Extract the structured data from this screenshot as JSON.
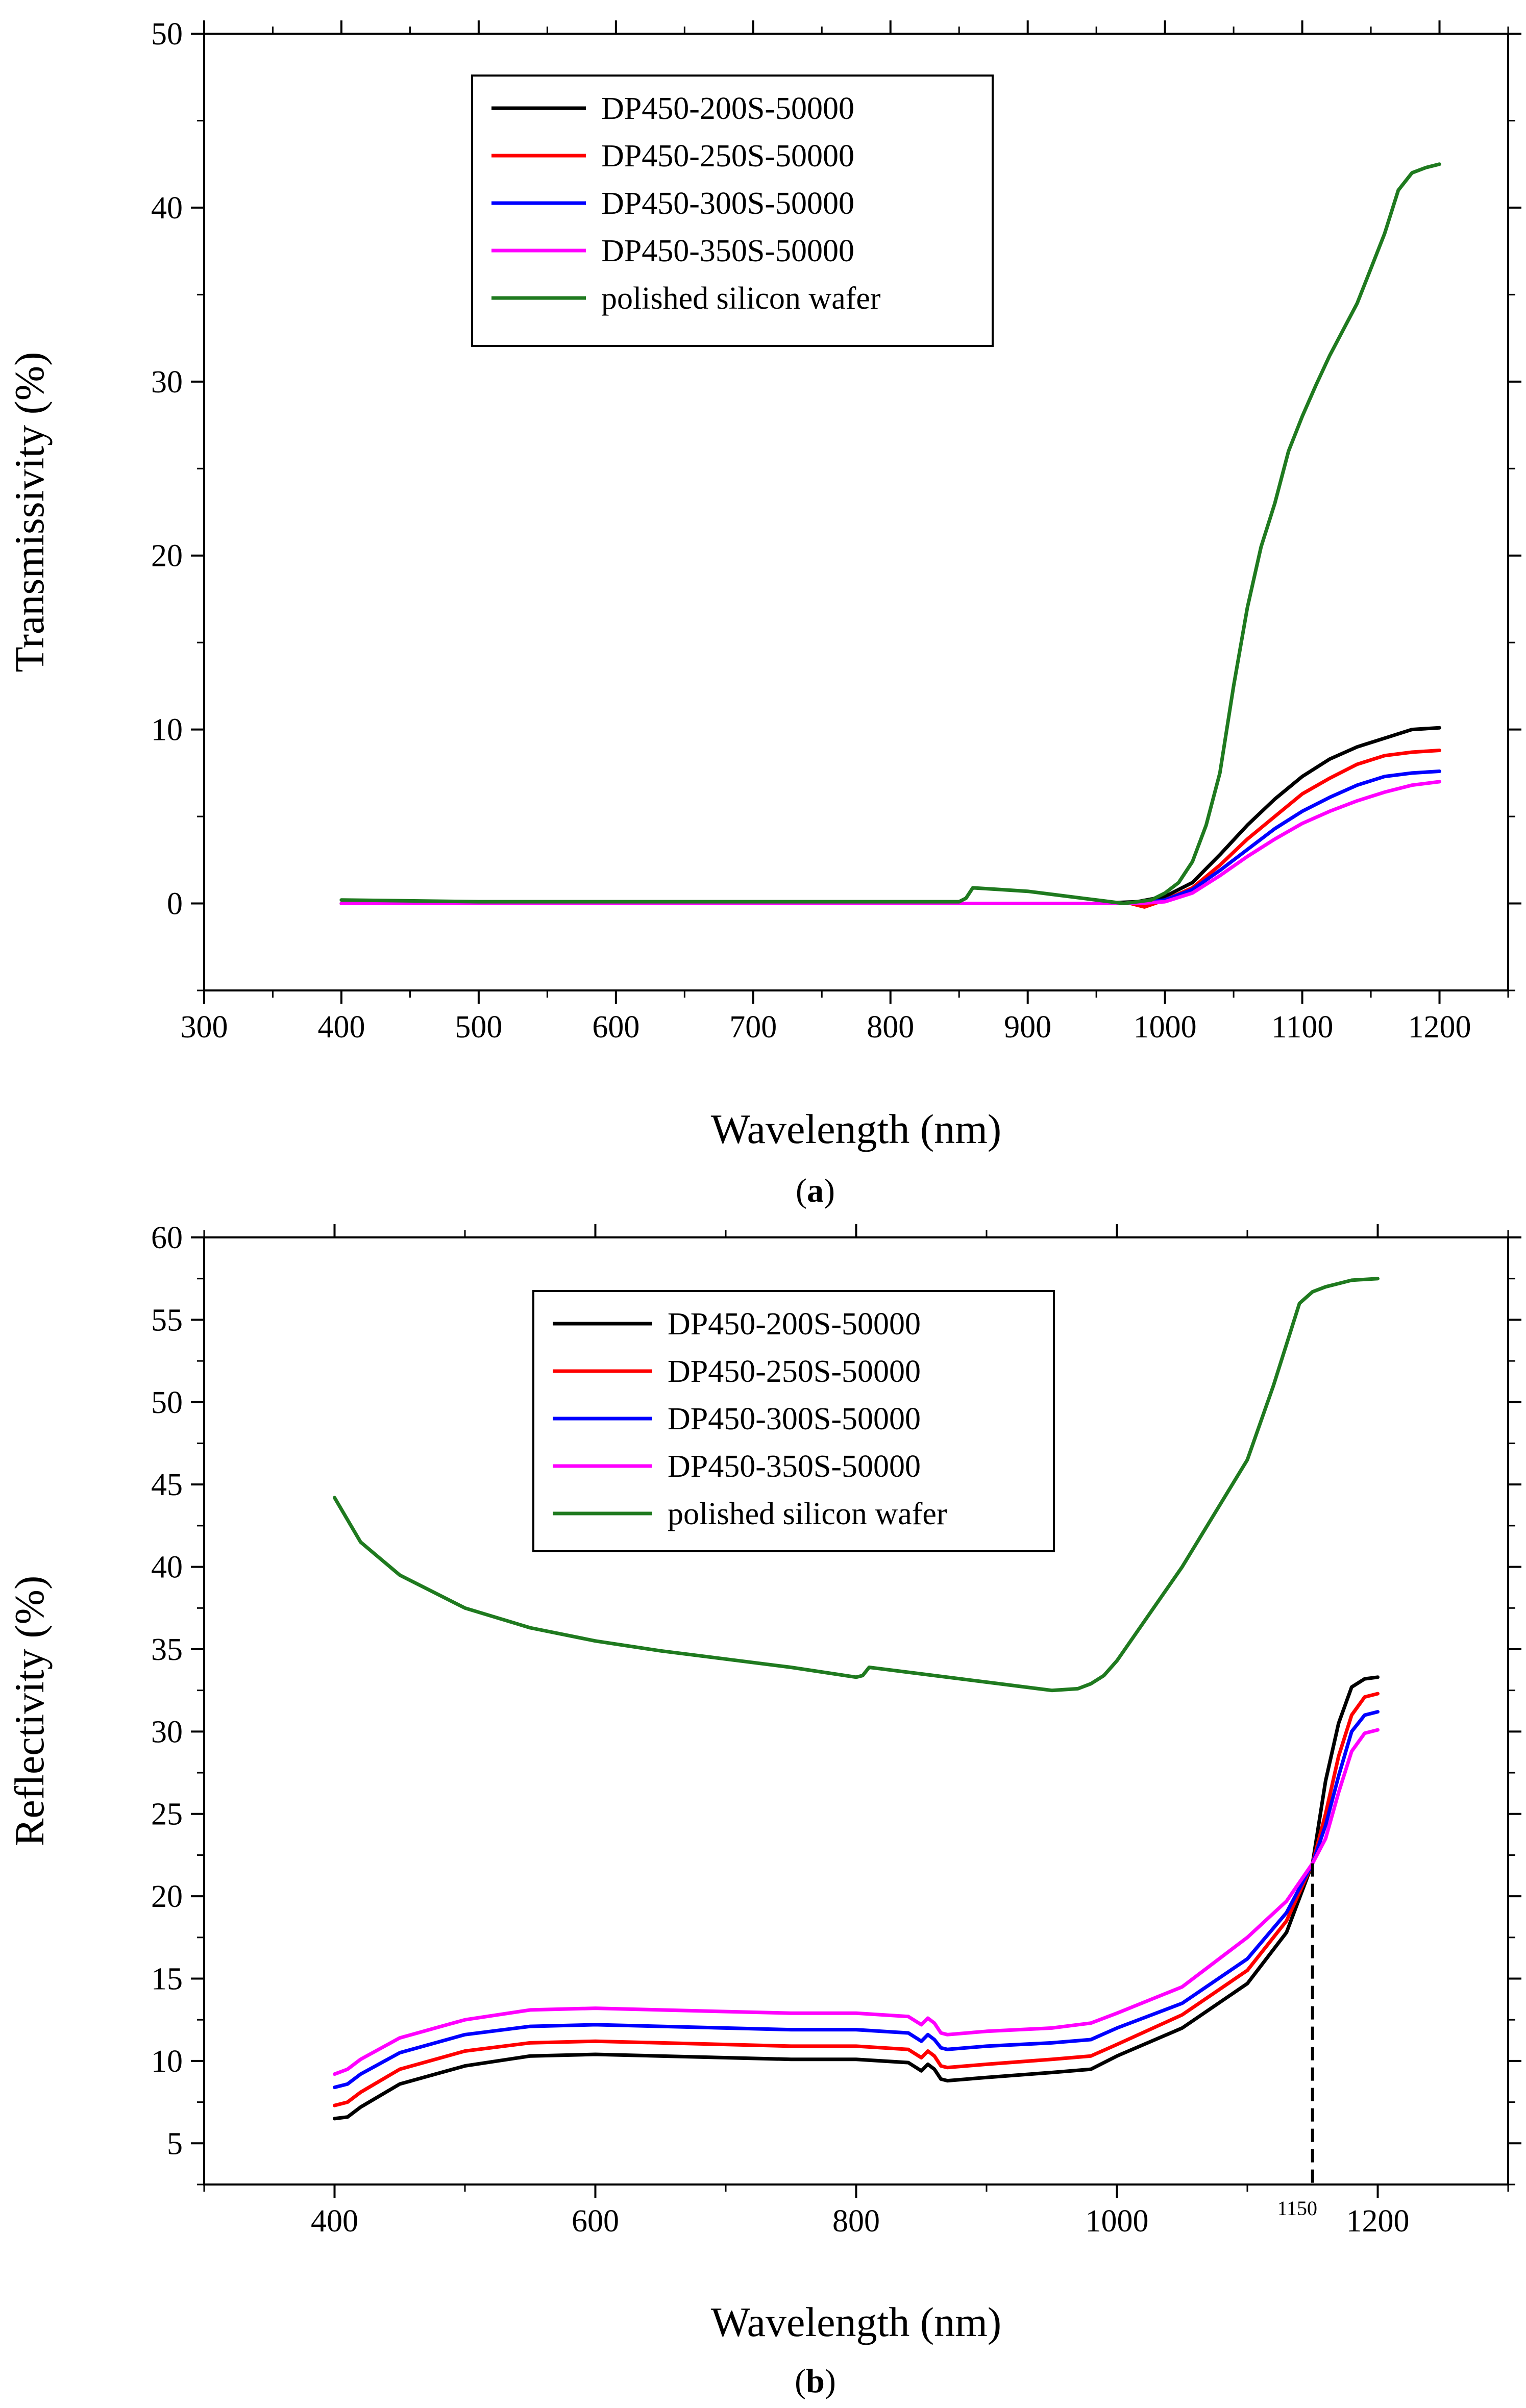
{
  "chart_data": [
    {
      "id": "a",
      "type": "line",
      "caption_open": "(",
      "caption_letter": "a",
      "caption_close": ")",
      "xlabel": "Wavelength (nm)",
      "ylabel": "Transmissivity (%)",
      "xlim": [
        300,
        1250
      ],
      "ylim": [
        -5,
        50
      ],
      "xticks": [
        300,
        400,
        500,
        600,
        700,
        800,
        900,
        1000,
        1100,
        1200
      ],
      "xtick_labels": [
        "300",
        "400",
        "500",
        "600",
        "700",
        "800",
        "900",
        "1000",
        "1100",
        "1200"
      ],
      "yticks": [
        0,
        10,
        20,
        30,
        40,
        50
      ],
      "ytick_labels": [
        "0",
        "10",
        "20",
        "30",
        "40",
        "50"
      ],
      "legend_position": "top-center",
      "series": [
        {
          "name": "DP450-200S-50000",
          "color": "#000000",
          "x": [
            400,
            500,
            600,
            700,
            800,
            900,
            950,
            980,
            1000,
            1020,
            1040,
            1060,
            1080,
            1100,
            1120,
            1140,
            1160,
            1180,
            1200
          ],
          "y": [
            0,
            0,
            0,
            0,
            0,
            0,
            0,
            0.1,
            0.4,
            1.2,
            2.8,
            4.5,
            6,
            7.3,
            8.3,
            9,
            9.5,
            10,
            10.1
          ]
        },
        {
          "name": "DP450-250S-50000",
          "color": "#ff0000",
          "x": [
            400,
            500,
            600,
            700,
            800,
            900,
            950,
            975,
            985,
            1000,
            1020,
            1040,
            1060,
            1080,
            1100,
            1120,
            1140,
            1160,
            1180,
            1200
          ],
          "y": [
            0,
            0,
            0,
            0,
            0,
            0,
            0,
            0,
            -0.2,
            0.2,
            0.9,
            2.2,
            3.7,
            5,
            6.3,
            7.2,
            8,
            8.5,
            8.7,
            8.8
          ]
        },
        {
          "name": "DP450-300S-50000",
          "color": "#0000ff",
          "x": [
            400,
            500,
            600,
            700,
            800,
            900,
            950,
            980,
            1000,
            1020,
            1040,
            1060,
            1080,
            1100,
            1120,
            1140,
            1160,
            1180,
            1200
          ],
          "y": [
            0,
            0,
            0,
            0,
            0,
            0,
            0,
            0,
            0.2,
            0.8,
            1.9,
            3.1,
            4.3,
            5.3,
            6.1,
            6.8,
            7.3,
            7.5,
            7.6
          ]
        },
        {
          "name": "DP450-350S-50000",
          "color": "#ff00ff",
          "x": [
            400,
            500,
            600,
            700,
            800,
            900,
            950,
            980,
            1000,
            1020,
            1040,
            1060,
            1080,
            1100,
            1120,
            1140,
            1160,
            1180,
            1200
          ],
          "y": [
            0,
            0,
            0,
            0,
            0,
            0,
            0,
            0,
            0.1,
            0.6,
            1.6,
            2.7,
            3.7,
            4.6,
            5.3,
            5.9,
            6.4,
            6.8,
            7
          ]
        },
        {
          "name": "polished silicon wafer",
          "color": "#1f7a1f",
          "x": [
            400,
            500,
            600,
            700,
            800,
            850,
            855,
            860,
            880,
            900,
            920,
            940,
            960,
            970,
            980,
            990,
            1000,
            1010,
            1020,
            1030,
            1040,
            1050,
            1060,
            1070,
            1080,
            1090,
            1100,
            1110,
            1120,
            1130,
            1140,
            1150,
            1160,
            1170,
            1180,
            1190,
            1200
          ],
          "y": [
            0.2,
            0.1,
            0.1,
            0.1,
            0.1,
            0.1,
            0.3,
            0.9,
            0.8,
            0.7,
            0.5,
            0.3,
            0.1,
            0,
            0.1,
            0.2,
            0.6,
            1.2,
            2.4,
            4.5,
            7.5,
            12.5,
            17,
            20.5,
            23,
            26,
            28,
            29.8,
            31.5,
            33,
            34.5,
            36.5,
            38.5,
            41,
            42,
            42.3,
            42.5
          ]
        }
      ]
    },
    {
      "id": "b",
      "type": "line",
      "caption_open": "(",
      "caption_letter": "b",
      "caption_close": ")",
      "xlabel": "Wavelength (nm)",
      "ylabel": "Reflectivity (%)",
      "xlim": [
        300,
        1300
      ],
      "ylim": [
        2.5,
        60
      ],
      "xticks": [
        400,
        600,
        800,
        1000,
        1200
      ],
      "xtick_labels": [
        "400",
        "600",
        "800",
        "1000",
        "1200"
      ],
      "yticks": [
        5,
        10,
        15,
        20,
        25,
        30,
        35,
        40,
        45,
        50,
        55,
        60
      ],
      "ytick_labels": [
        "5",
        "10",
        "15",
        "20",
        "25",
        "30",
        "35",
        "40",
        "45",
        "50",
        "55",
        "60"
      ],
      "annotation": {
        "x": 1150,
        "y": 22,
        "label": "1150",
        "style": "dashed vertical"
      },
      "legend_position": "top-center",
      "series": [
        {
          "name": "DP450-200S-50000",
          "color": "#000000",
          "x": [
            400,
            410,
            420,
            450,
            500,
            550,
            600,
            650,
            700,
            750,
            800,
            840,
            850,
            855,
            860,
            865,
            870,
            900,
            950,
            980,
            1000,
            1050,
            1100,
            1130,
            1150,
            1160,
            1170,
            1180,
            1190,
            1200
          ],
          "y": [
            6.5,
            6.6,
            7.2,
            8.6,
            9.7,
            10.3,
            10.4,
            10.3,
            10.2,
            10.1,
            10.1,
            9.9,
            9.4,
            9.8,
            9.5,
            8.9,
            8.8,
            9,
            9.3,
            9.5,
            10.3,
            12,
            14.7,
            17.8,
            22,
            27,
            30.5,
            32.7,
            33.2,
            33.3
          ]
        },
        {
          "name": "DP450-250S-50000",
          "color": "#ff0000",
          "x": [
            400,
            410,
            420,
            450,
            500,
            550,
            600,
            650,
            700,
            750,
            800,
            840,
            850,
            855,
            860,
            865,
            870,
            900,
            950,
            980,
            1000,
            1050,
            1100,
            1130,
            1150,
            1160,
            1170,
            1180,
            1190,
            1200
          ],
          "y": [
            7.3,
            7.5,
            8.1,
            9.5,
            10.6,
            11.1,
            11.2,
            11.1,
            11,
            10.9,
            10.9,
            10.7,
            10.2,
            10.6,
            10.3,
            9.7,
            9.6,
            9.8,
            10.1,
            10.3,
            11,
            12.8,
            15.5,
            18.5,
            22,
            25,
            28.5,
            31,
            32.1,
            32.3
          ]
        },
        {
          "name": "DP450-300S-50000",
          "color": "#0000ff",
          "x": [
            400,
            410,
            420,
            450,
            500,
            550,
            600,
            650,
            700,
            750,
            800,
            840,
            850,
            855,
            860,
            865,
            870,
            900,
            950,
            980,
            1000,
            1050,
            1100,
            1130,
            1150,
            1160,
            1170,
            1180,
            1190,
            1200
          ],
          "y": [
            8.4,
            8.6,
            9.2,
            10.5,
            11.6,
            12.1,
            12.2,
            12.1,
            12,
            11.9,
            11.9,
            11.7,
            11.2,
            11.6,
            11.3,
            10.8,
            10.7,
            10.9,
            11.1,
            11.3,
            12,
            13.5,
            16.2,
            19,
            22,
            24.3,
            27.3,
            30,
            31,
            31.2
          ]
        },
        {
          "name": "DP450-350S-50000",
          "color": "#ff00ff",
          "x": [
            400,
            410,
            420,
            450,
            500,
            550,
            600,
            650,
            700,
            750,
            800,
            840,
            850,
            855,
            860,
            865,
            870,
            900,
            950,
            980,
            1000,
            1050,
            1100,
            1130,
            1150,
            1160,
            1170,
            1180,
            1190,
            1200
          ],
          "y": [
            9.2,
            9.5,
            10.1,
            11.4,
            12.5,
            13.1,
            13.2,
            13.1,
            13,
            12.9,
            12.9,
            12.7,
            12.2,
            12.6,
            12.3,
            11.7,
            11.6,
            11.8,
            12,
            12.3,
            12.9,
            14.5,
            17.5,
            19.7,
            22,
            23.5,
            26.3,
            28.8,
            29.9,
            30.1
          ]
        },
        {
          "name": "polished silicon wafer",
          "color": "#1f7a1f",
          "x": [
            400,
            420,
            450,
            500,
            550,
            600,
            650,
            700,
            750,
            800,
            805,
            810,
            820,
            850,
            900,
            950,
            970,
            980,
            990,
            1000,
            1050,
            1100,
            1120,
            1140,
            1150,
            1160,
            1170,
            1180,
            1200
          ],
          "y": [
            44.2,
            41.5,
            39.5,
            37.5,
            36.3,
            35.5,
            34.9,
            34.4,
            33.9,
            33.3,
            33.4,
            33.9,
            33.8,
            33.5,
            33,
            32.5,
            32.6,
            32.9,
            33.4,
            34.3,
            40,
            46.5,
            51,
            56,
            56.7,
            57,
            57.2,
            57.4,
            57.5
          ]
        }
      ]
    }
  ]
}
